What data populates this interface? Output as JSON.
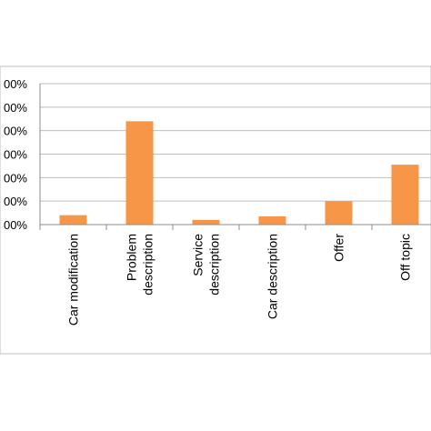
{
  "chart_data": {
    "type": "bar",
    "categories": [
      [
        "Car modification"
      ],
      [
        "Problem",
        "description"
      ],
      [
        "Service",
        "description"
      ],
      [
        "Car description"
      ],
      [
        "Offer"
      ],
      [
        "Off topic"
      ]
    ],
    "values": [
      4,
      44,
      2,
      3.5,
      10,
      25.5
    ],
    "y_tick_labels": [
      "00%",
      "00%",
      "00%",
      "00%",
      "00%",
      "00%",
      "00%"
    ],
    "y_tick_values": [
      0,
      10,
      20,
      30,
      40,
      50,
      60
    ],
    "ylim": [
      0,
      60
    ],
    "grid": true,
    "bar_color": "#F79646",
    "title": "",
    "xlabel": "",
    "ylabel": ""
  }
}
